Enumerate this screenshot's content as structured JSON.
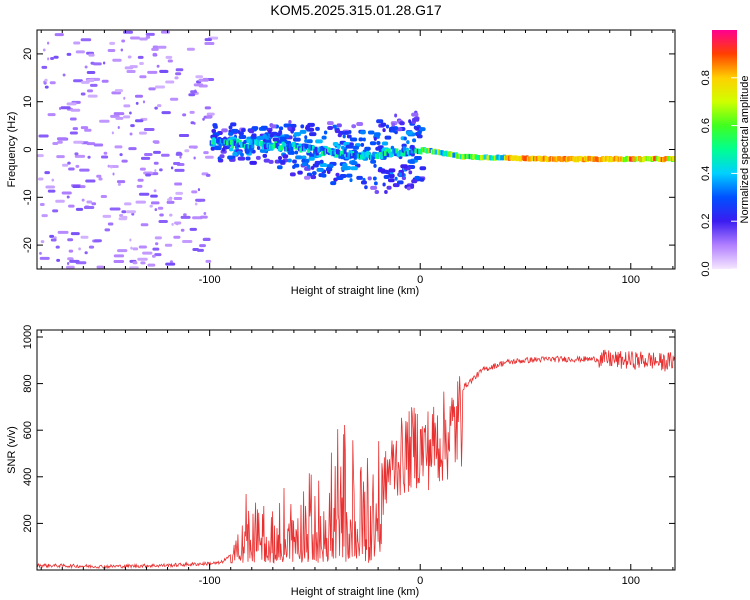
{
  "chart_data": [
    {
      "type": "heatmap",
      "title": "KOM5.2025.315.01.28.G17",
      "xlabel": "Height of straight line (km)",
      "ylabel": "Frequency (Hz)",
      "xlim": [
        -182,
        121
      ],
      "ylim": [
        -25,
        25
      ],
      "xticks": [
        -100,
        0,
        100
      ],
      "xtick_labels": [
        "-100",
        "0",
        "100"
      ],
      "yticks": [
        -20,
        -10,
        0,
        10,
        20
      ],
      "ytick_labels": [
        "-20",
        "-10",
        "0",
        "10",
        "20"
      ],
      "colorbar": {
        "label": "Normalized spectral amplitude",
        "range": [
          0,
          1
        ],
        "ticks": [
          0.0,
          0.2,
          0.4,
          0.6,
          0.8
        ],
        "tick_labels": [
          "0.0",
          "0.2",
          "0.4",
          "0.6",
          "0.8"
        ]
      },
      "ridge": {
        "description_points_km_hz": [
          [
            -100,
            1.5
          ],
          [
            -60,
            0.5
          ],
          [
            -30,
            -1.5
          ],
          [
            0,
            0
          ],
          [
            20,
            -1.5
          ],
          [
            60,
            -2
          ],
          [
            100,
            -2
          ],
          [
            120,
            -2
          ]
        ]
      }
    },
    {
      "type": "line",
      "title": "",
      "xlabel": "Height of straight line (km)",
      "ylabel": "SNR (v/v)",
      "xlim": [
        -182,
        121
      ],
      "ylim": [
        0,
        1030
      ],
      "xticks": [
        -100,
        0,
        100
      ],
      "xtick_labels": [
        "-100",
        "0",
        "100"
      ],
      "yticks": [
        200,
        400,
        600,
        800,
        1000
      ],
      "ytick_labels": [
        "200",
        "400",
        "600",
        "800",
        "1000"
      ],
      "series": [
        {
          "name": "SNR",
          "color": "#e83030",
          "x": [
            -182,
            -150,
            -120,
            -95,
            -90,
            -85,
            -80,
            -75,
            -70,
            -65,
            -60,
            -55,
            -50,
            -45,
            -40,
            -35,
            -30,
            -25,
            -20,
            -18,
            -15,
            -10,
            -5,
            -2,
            0,
            5,
            10,
            15,
            20,
            25,
            30,
            40,
            50,
            60,
            70,
            80,
            85,
            90,
            95,
            100,
            110,
            115,
            121
          ],
          "values": [
            20,
            15,
            20,
            30,
            60,
            150,
            220,
            240,
            200,
            220,
            240,
            260,
            280,
            300,
            350,
            400,
            380,
            420,
            480,
            400,
            500,
            560,
            600,
            640,
            600,
            620,
            660,
            700,
            780,
            820,
            860,
            890,
            900,
            905,
            905,
            905,
            905,
            905,
            900,
            900,
            900,
            890,
            900
          ]
        }
      ]
    }
  ]
}
